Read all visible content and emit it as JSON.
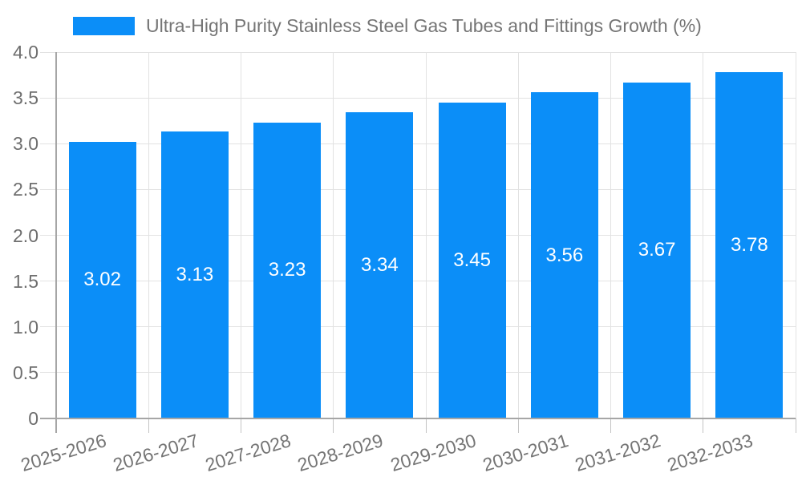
{
  "chart_data": {
    "type": "bar",
    "title": "Ultra-High Purity Stainless Steel Gas Tubes and Fittings Growth (%)",
    "categories": [
      "2025-2026",
      "2026-2027",
      "2027-2028",
      "2028-2029",
      "2029-2030",
      "2030-2031",
      "2031-2032",
      "2032-2033"
    ],
    "values": [
      3.02,
      3.13,
      3.23,
      3.34,
      3.45,
      3.56,
      3.67,
      3.78
    ],
    "value_label_decimals": 2,
    "xlabel": "",
    "ylabel": "",
    "ylim": [
      0,
      4
    ],
    "ytick_step": 0.5,
    "ytick_labels": [
      "0",
      "0.5",
      "1.0",
      "1.5",
      "2.0",
      "2.5",
      "3.0",
      "3.5",
      "4.0"
    ],
    "grid": true,
    "legend_position": "top-left",
    "x_label_rotation_deg": -17
  },
  "colors": {
    "bar": "#0b8ef8",
    "bar_value_text": "#ffffff",
    "grid": "#e2e2e2",
    "axis": "#a6a6a6",
    "tick": "#c4c4c4",
    "axis_label_text": "#6e6e6e",
    "legend_text": "#757575",
    "background": "#ffffff"
  }
}
